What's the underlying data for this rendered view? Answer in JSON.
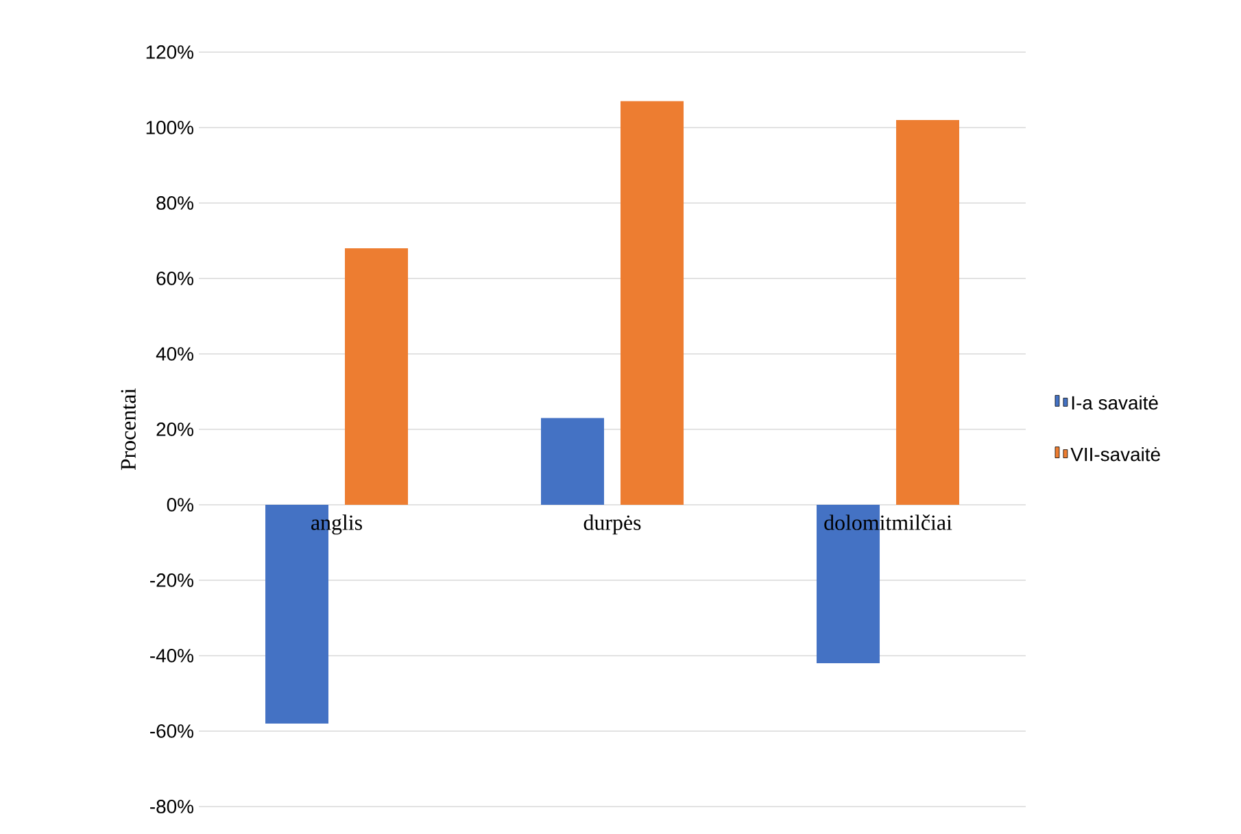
{
  "chart_data": {
    "type": "bar",
    "ylabel": "Procentai",
    "categories": [
      "anglis",
      "durpės",
      "dolomitmilčiai"
    ],
    "series": [
      {
        "name": "I-a savaitė",
        "color": "#4472c4",
        "values": [
          -58,
          23,
          -42
        ]
      },
      {
        "name": "VII-savaitė",
        "color": "#ed7d31",
        "values": [
          68,
          107,
          102
        ]
      }
    ],
    "ylim": [
      -80,
      120
    ],
    "yticks": [
      {
        "value": -80,
        "label": "-80%"
      },
      {
        "value": -60,
        "label": "-60%"
      },
      {
        "value": -40,
        "label": "-40%"
      },
      {
        "value": -20,
        "label": "-20%"
      },
      {
        "value": 0,
        "label": "0%"
      },
      {
        "value": 20,
        "label": "20%"
      },
      {
        "value": 40,
        "label": "40%"
      },
      {
        "value": 60,
        "label": "60%"
      },
      {
        "value": 80,
        "label": "80%"
      },
      {
        "value": 100,
        "label": "100%"
      },
      {
        "value": 120,
        "label": "120%"
      }
    ],
    "grid": "y",
    "legend": "right"
  }
}
